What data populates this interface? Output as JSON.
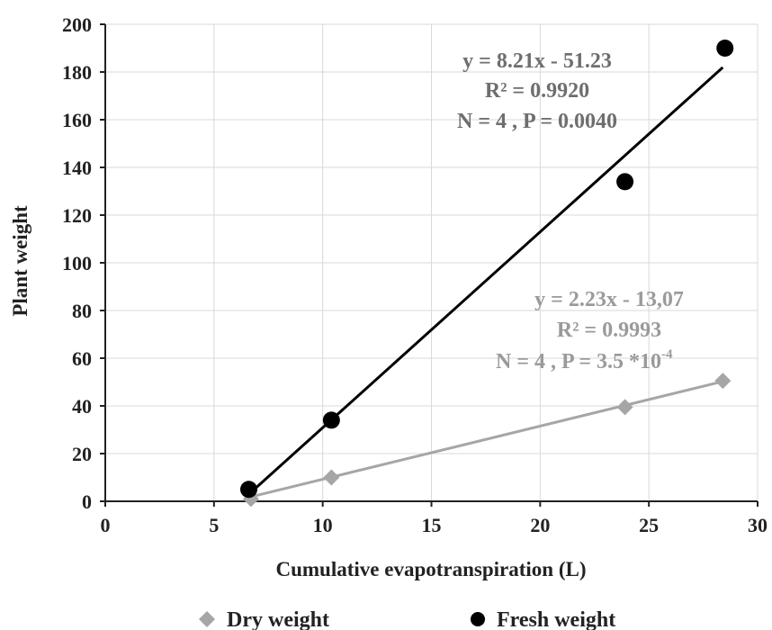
{
  "chart_data": {
    "type": "scatter",
    "xlabel": "Cumulative evapotranspiration (L)",
    "ylabel": "Plant weight",
    "xlim": [
      0,
      30
    ],
    "ylim": [
      0,
      200
    ],
    "x_ticks": [
      0,
      5,
      10,
      15,
      20,
      25,
      30
    ],
    "y_ticks": [
      0,
      20,
      40,
      60,
      80,
      100,
      120,
      140,
      160,
      180,
      200
    ],
    "grid": true,
    "legend_position": "bottom",
    "series": [
      {
        "name": "Dry weight",
        "marker": "diamond",
        "color": "#a6a6a6",
        "x": [
          6.7,
          10.4,
          23.9,
          28.4
        ],
        "y": [
          1,
          10,
          39.5,
          50.5
        ],
        "trendline": {
          "slope": 2.23,
          "intercept": -13.07,
          "x_range": [
            6.5,
            28.4
          ]
        },
        "annotation": [
          "y = 2.23x - 13,07",
          "R² = 0.9993",
          "N = 4 , P = 3.5 *10",
          "-4"
        ]
      },
      {
        "name": "Fresh weight",
        "marker": "circle",
        "color": "#000000",
        "x": [
          6.6,
          10.4,
          23.9,
          28.5
        ],
        "y": [
          5,
          34,
          134,
          190
        ],
        "trendline": {
          "slope": 8.21,
          "intercept": -51.23,
          "x_range": [
            6.5,
            28.4
          ]
        },
        "annotation": [
          "y = 8.21x - 51.23",
          "R² = 0.9920",
          "N = 4 , P = 0.0040"
        ]
      }
    ]
  }
}
